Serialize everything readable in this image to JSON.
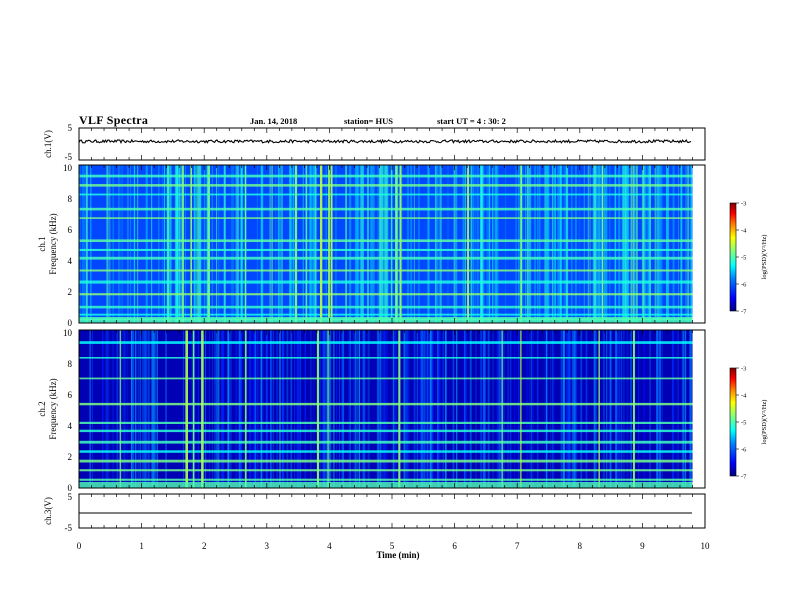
{
  "header": {
    "title": "VLF Spectra",
    "date": "Jan. 14, 2018",
    "station": "station= HUS",
    "start_ut": "start  UT =   4 : 30: 2"
  },
  "colors": {
    "colormap": [
      "#00007f",
      "#0000ff",
      "#0080ff",
      "#00ffff",
      "#80ff80",
      "#ffff00",
      "#ff8000",
      "#ff0000",
      "#7f0000"
    ],
    "trace": "#000000"
  },
  "chart_data": [
    {
      "type": "line",
      "panel": "ch1-waveform",
      "ylabel": "ch.1(V)",
      "ylim": [
        -5,
        5
      ],
      "yticks": [
        "5",
        "-5"
      ],
      "xlim": [
        0,
        10
      ],
      "series": [
        {
          "values_summary": "noisy trace near constant level",
          "level": 0.2
        }
      ]
    },
    {
      "type": "heatmap",
      "panel": "ch1-spectrogram",
      "ylabel": "ch.1\nFrequency (kHz)",
      "ylim": [
        0,
        10
      ],
      "yticks": [
        "0",
        "2",
        "4",
        "6",
        "8",
        "10"
      ],
      "xlim": [
        0,
        9.85
      ],
      "colorbar": {
        "label": "log(PSD)(V²/Hz)",
        "range": [
          -7,
          -3
        ],
        "ticks": [
          "-3",
          "-4",
          "-5",
          "-6",
          "-7"
        ]
      },
      "bands_khz": [
        0.2,
        0.5,
        1.0,
        1.8,
        2.6,
        3.3,
        4.1,
        4.6,
        5.2,
        6.6,
        7.2,
        8.1,
        8.7,
        9.3
      ],
      "events_min": [
        1.65,
        1.78,
        2.05,
        2.65,
        3.45,
        3.62,
        3.85,
        3.98,
        4.02,
        5.05,
        5.12,
        6.2,
        7.05,
        8.35
      ]
    },
    {
      "type": "heatmap",
      "panel": "ch2-spectrogram",
      "ylabel": "ch.2\nFrequency (kHz)",
      "ylim": [
        0,
        10
      ],
      "yticks": [
        "0",
        "2",
        "4",
        "6",
        "8",
        "10"
      ],
      "xlim": [
        0,
        9.85
      ],
      "colorbar": {
        "label": "log(PSD)(V²/Hz)",
        "range": [
          -7,
          -3
        ],
        "ticks": [
          "-3",
          "-4",
          "-5",
          "-6",
          "-7"
        ]
      },
      "bands_khz": [
        0.5,
        1.1,
        1.7,
        2.3,
        2.9,
        3.6,
        4.1,
        5.3,
        6.9,
        8.2,
        9.2
      ],
      "events_min": [
        0.65,
        1.7,
        1.82,
        1.95,
        2.65,
        3.8,
        3.97,
        5.1,
        6.75,
        7.05,
        8.3,
        8.85
      ]
    },
    {
      "type": "line",
      "panel": "ch3-waveform",
      "ylabel": "ch.3(V)",
      "ylim": [
        -5,
        5
      ],
      "yticks": [
        "5",
        "-5"
      ],
      "xlim": [
        0,
        10
      ],
      "series": [
        {
          "values_summary": "flat line",
          "level": -1
        }
      ]
    }
  ],
  "xaxis": {
    "label": "Time (min)",
    "ticks": [
      "0",
      "1",
      "2",
      "3",
      "4",
      "5",
      "6",
      "7",
      "8",
      "9",
      "10"
    ]
  }
}
